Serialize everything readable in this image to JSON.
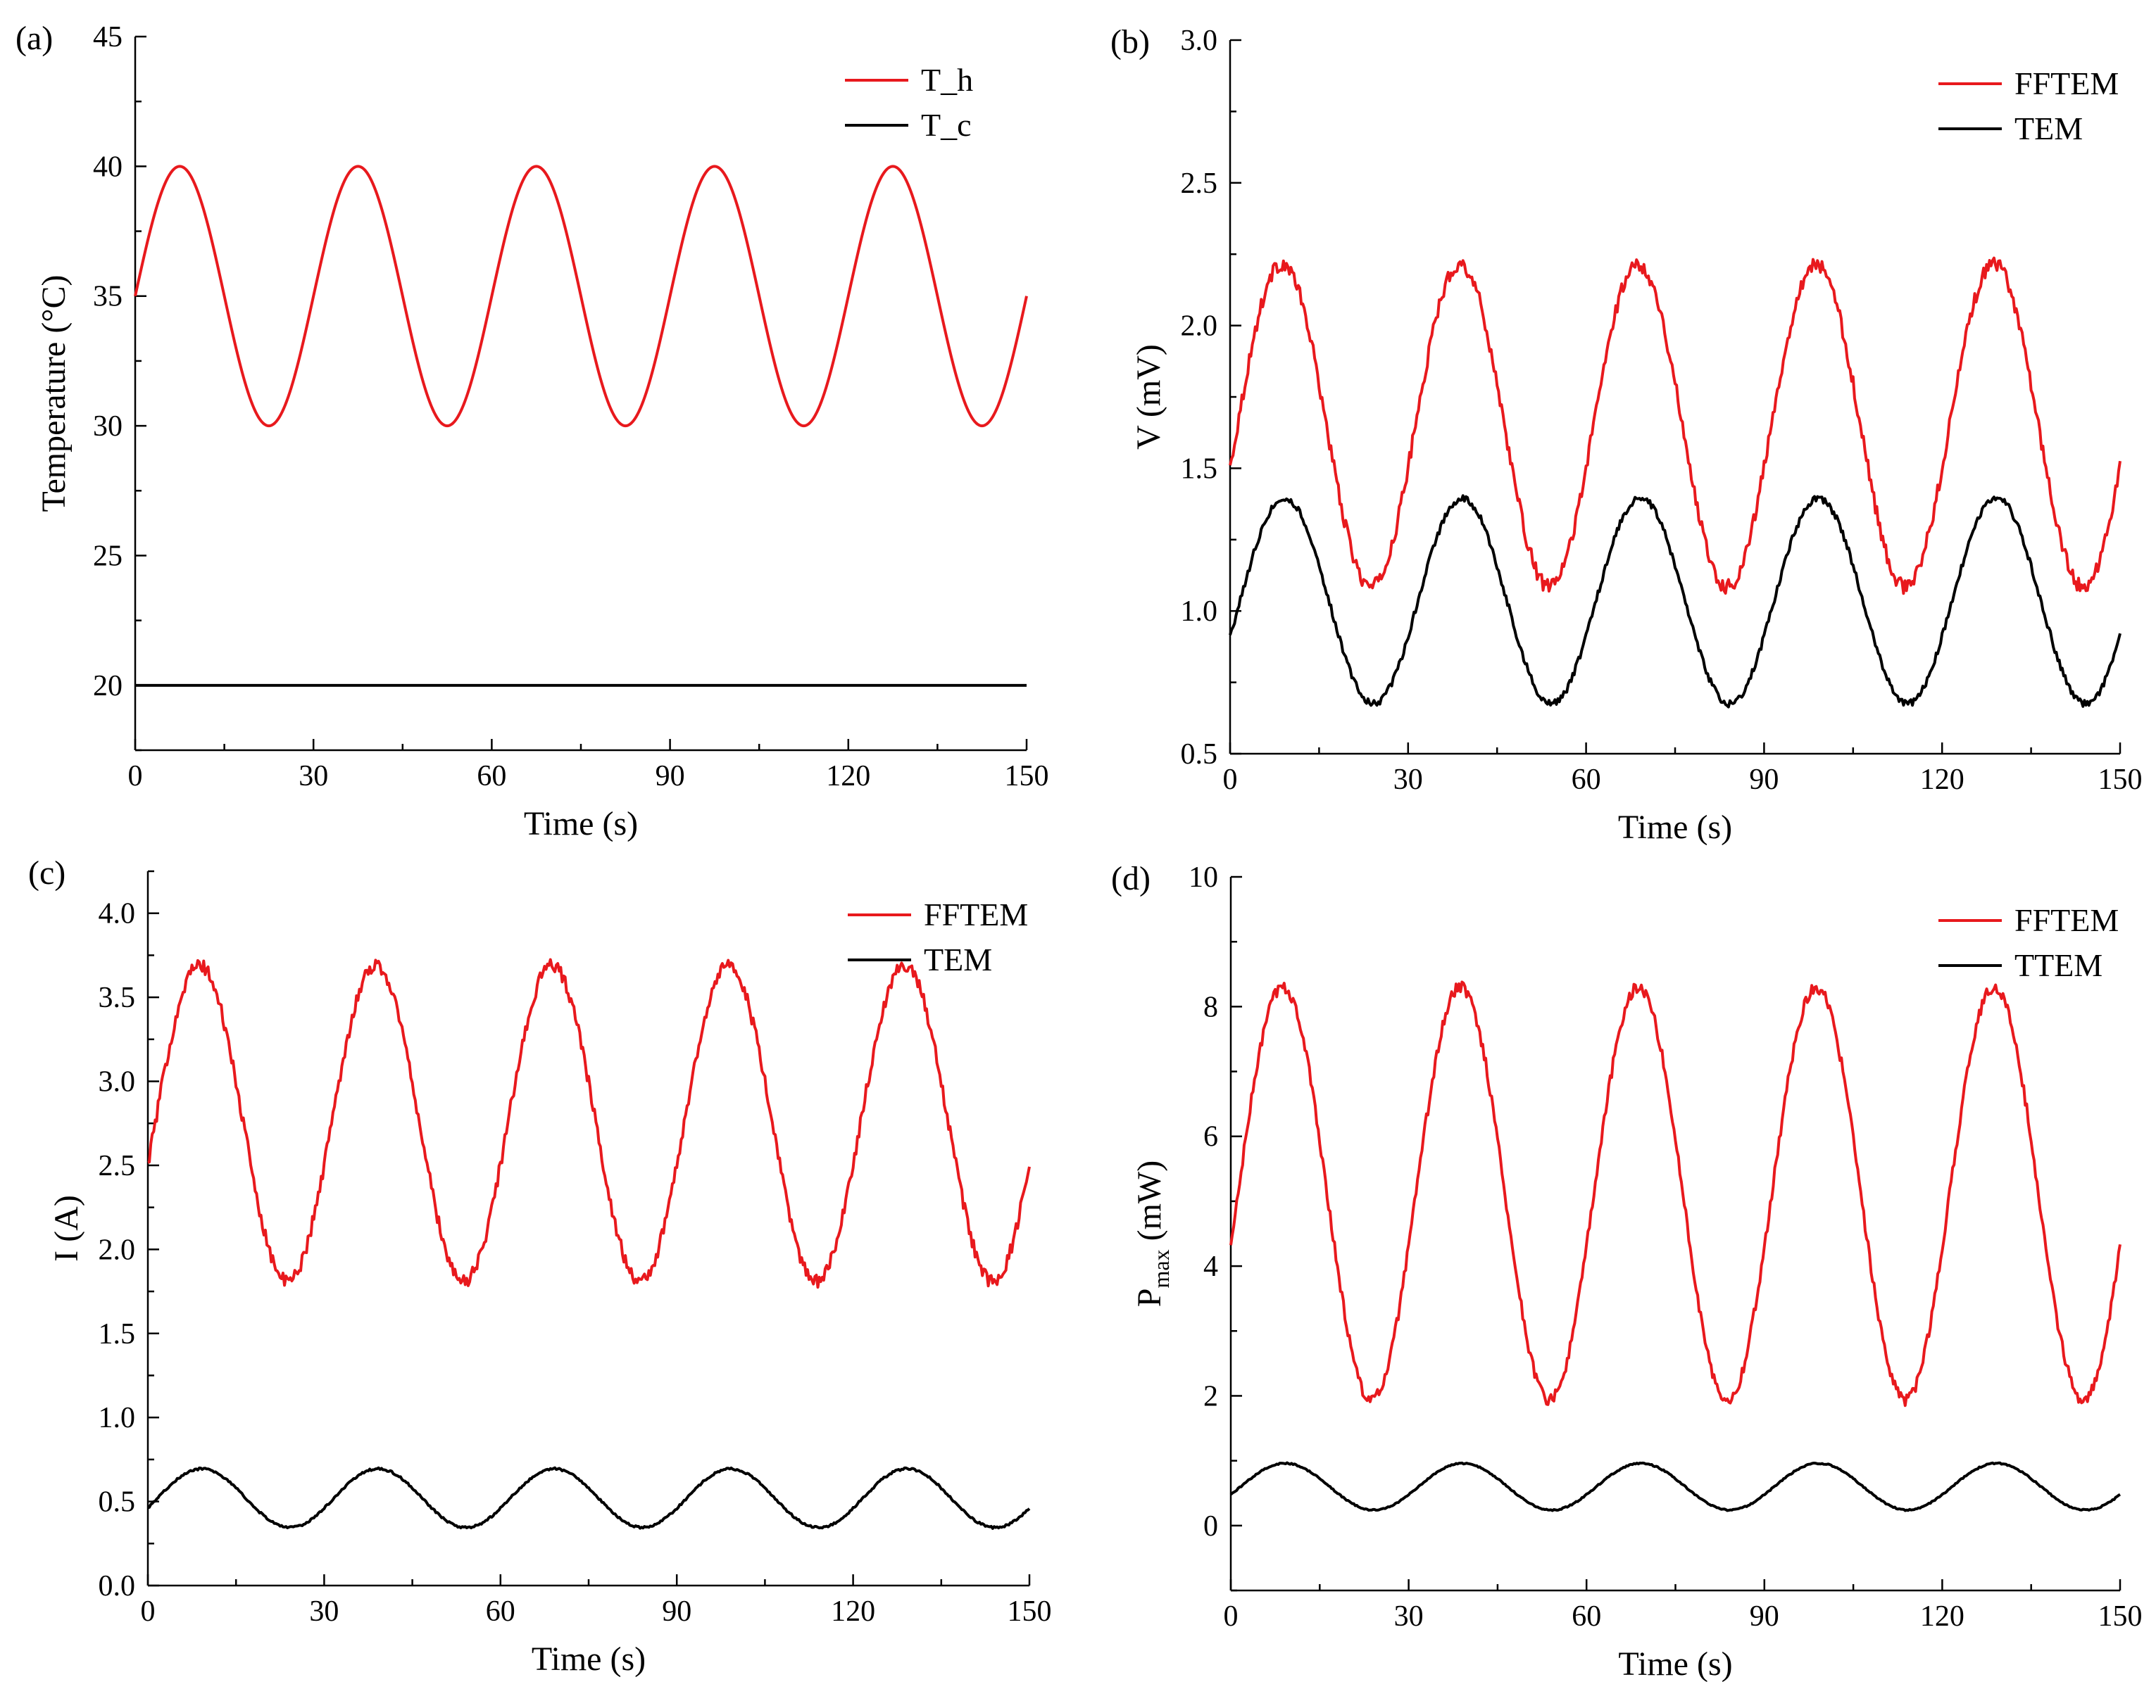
{
  "figure": {
    "colors": {
      "red": "#e8191d",
      "black": "#000000"
    }
  },
  "chart_data": [
    {
      "id": "a",
      "panel_label": "(a)",
      "type": "line",
      "xlabel": "Time (s)",
      "ylabel": "Temperature (°C)",
      "ylabel_parts": null,
      "xlim": [
        0,
        150
      ],
      "ylim": [
        17.5,
        45
      ],
      "xticks": [
        0,
        30,
        60,
        90,
        120,
        150
      ],
      "yticks": [
        20,
        25,
        30,
        35,
        40,
        45
      ],
      "ytick_labels": [
        "20",
        "25",
        "30",
        "35",
        "40",
        "45"
      ],
      "legend_position": "top-right",
      "series": [
        {
          "name": "T_h",
          "color": "#e8191d",
          "mean": 35,
          "amp": 5,
          "period": 30,
          "phase_deg": 0,
          "noise": 0
        },
        {
          "name": "T_c",
          "color": "#000000",
          "mean": 20,
          "amp": 0,
          "period": 30,
          "phase_deg": 0,
          "noise": 0
        }
      ]
    },
    {
      "id": "b",
      "panel_label": "(b)",
      "type": "line",
      "xlabel": "Time (s)",
      "ylabel": "V (mV)",
      "ylabel_parts": null,
      "xlim": [
        0,
        150
      ],
      "ylim": [
        0.5,
        3.0
      ],
      "xticks": [
        0,
        30,
        60,
        90,
        120,
        150
      ],
      "yticks": [
        0.5,
        1.0,
        1.5,
        2.0,
        2.5,
        3.0
      ],
      "ytick_labels": [
        "0.5",
        "1.0",
        "1.5",
        "2.0",
        "2.5",
        "3.0"
      ],
      "legend_position": "top-right",
      "series": [
        {
          "name": "FFTEM",
          "color": "#e8191d",
          "mean": 1.65,
          "amp": 0.565,
          "period": 30,
          "phase_deg": -15,
          "noise": 0.025
        },
        {
          "name": "TEM",
          "color": "#000000",
          "mean": 1.035,
          "amp": 0.36,
          "period": 30,
          "phase_deg": -20,
          "noise": 0.012
        }
      ]
    },
    {
      "id": "c",
      "panel_label": "(c)",
      "type": "line",
      "xlabel": "Time (s)",
      "ylabel": "I (A)",
      "ylabel_parts": null,
      "xlim": [
        0,
        150
      ],
      "ylim": [
        0.0,
        4.25
      ],
      "xticks": [
        0,
        30,
        60,
        90,
        120,
        150
      ],
      "yticks": [
        0.0,
        0.5,
        1.0,
        1.5,
        2.0,
        2.5,
        3.0,
        3.5,
        4.0
      ],
      "ytick_labels": [
        "0.0",
        "0.5",
        "1.0",
        "1.5",
        "2.0",
        "2.5",
        "3.0",
        "3.5",
        "4.0"
      ],
      "legend_position": "top-right",
      "series": [
        {
          "name": "FFTEM",
          "color": "#e8191d",
          "mean": 2.75,
          "amp": 0.94,
          "period": 30,
          "phase_deg": -15,
          "noise": 0.04
        },
        {
          "name": "TEM",
          "color": "#000000",
          "mean": 0.52,
          "amp": 0.175,
          "period": 30,
          "phase_deg": -20,
          "noise": 0.006
        }
      ]
    },
    {
      "id": "d",
      "panel_label": "(d)",
      "type": "line",
      "xlabel": "Time (s)",
      "ylabel": "P_max (mW)",
      "ylabel_parts": {
        "main": "P",
        "sub": "max",
        "rest": " (mW)"
      },
      "xlim": [
        0,
        150
      ],
      "ylim": [
        -1,
        10
      ],
      "xticks": [
        0,
        30,
        60,
        90,
        120,
        150
      ],
      "yticks": [
        0,
        2,
        4,
        6,
        8,
        10
      ],
      "ytick_labels": [
        "0",
        "2",
        "4",
        "6",
        "8",
        "10"
      ],
      "legend_position": "top-right",
      "series": [
        {
          "name": "FFTEM",
          "color": "#e8191d",
          "mean": 5.12,
          "amp": 3.18,
          "period": 30,
          "phase_deg": -15,
          "noise": 0.09
        },
        {
          "name": "TTEM",
          "color": "#000000",
          "mean": 0.6,
          "amp": 0.36,
          "period": 30,
          "phase_deg": -20,
          "noise": 0.01
        }
      ]
    }
  ]
}
